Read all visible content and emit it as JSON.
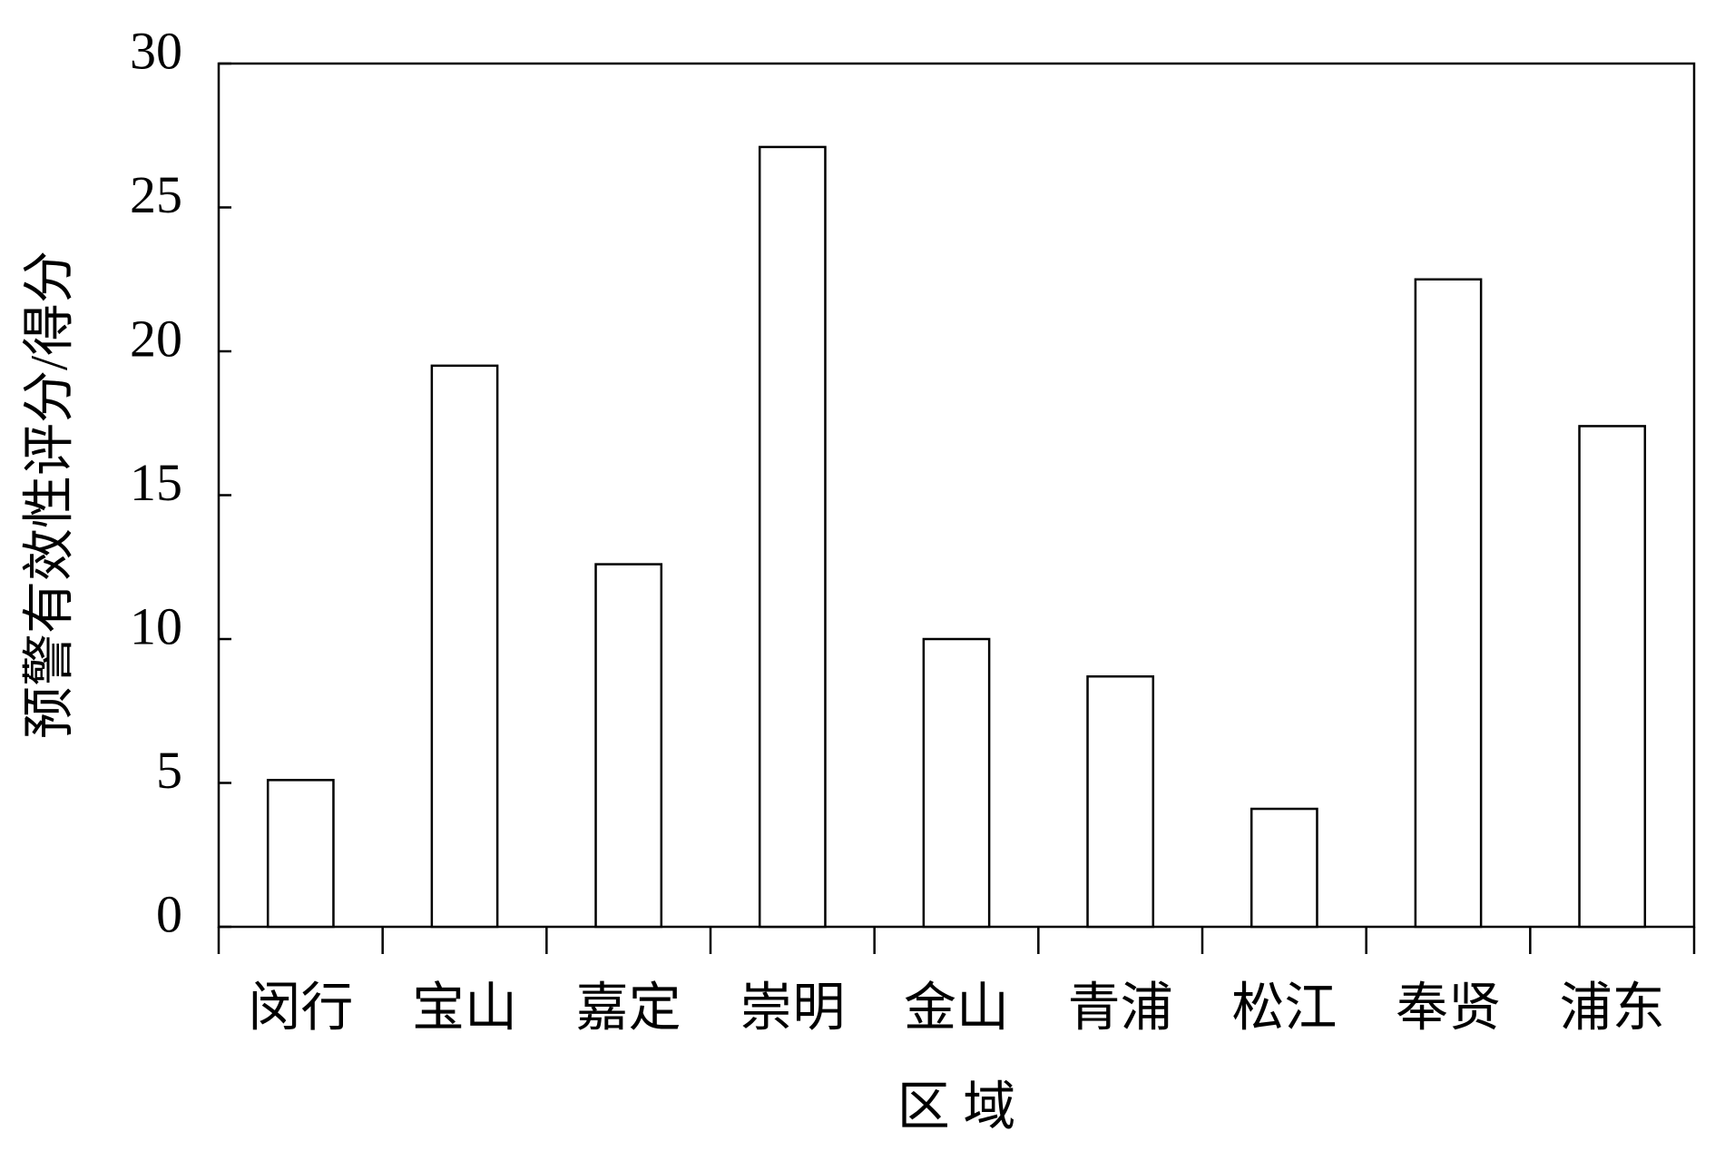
{
  "chart_data": {
    "type": "bar",
    "x_label": "区 域",
    "y_label": "预警有效性评分/得分",
    "categories": [
      "闵行",
      "宝山",
      "嘉定",
      "崇明",
      "金山",
      "青浦",
      "松江",
      "奉贤",
      "浦东"
    ],
    "values": [
      5.1,
      19.5,
      12.6,
      27.1,
      10.0,
      8.7,
      4.1,
      22.5,
      17.4
    ],
    "color": "#ffffff",
    "ylim": [
      0,
      30
    ],
    "yticks": [
      0,
      5,
      10,
      15,
      20,
      25,
      30
    ],
    "grid": false
  }
}
